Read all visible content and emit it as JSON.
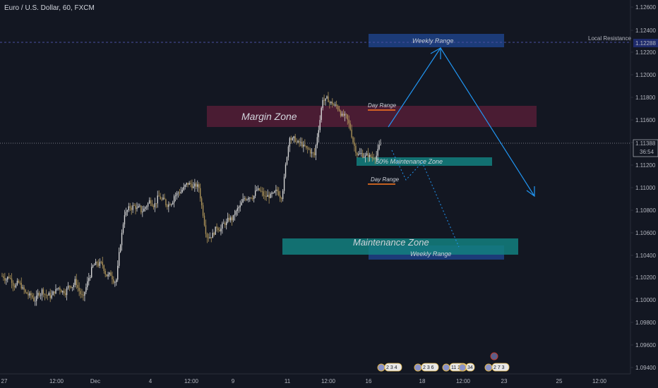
{
  "symbol_title": "Euro / U.S. Dollar, 60, FXCM",
  "price_axis": {
    "ticks": [
      "1.12600",
      "1.12400",
      "1.12200",
      "1.12000",
      "1.11800",
      "1.11600",
      "1.11400",
      "1.11200",
      "1.11000",
      "1.10800",
      "1.10600",
      "1.10400",
      "1.10200",
      "1.10000",
      "1.09800",
      "1.09600",
      "1.09400"
    ],
    "current_price": "1.11388",
    "countdown": "36:54",
    "resistance_price": "1.12288",
    "resistance_label": "Local Resistance"
  },
  "time_axis": {
    "ticks": [
      "27",
      "12:00",
      "Dec",
      "4",
      "12:00",
      "9",
      "11",
      "12:00",
      "16",
      "18",
      "12:00",
      "23",
      "25",
      "12:00"
    ]
  },
  "annotations": {
    "weekly_range_top": "Weekly Range",
    "weekly_range_bottom": "Weekly Range",
    "margin_zone": "Margin Zone",
    "maintenance_zone": "Maintenance Zone",
    "half_maintenance_zone": "50% Maintenance Zone",
    "day_range_top": "Day Range",
    "day_range_bottom": "Day Range"
  },
  "events": [
    {
      "icon": "event-flags",
      "label": "2 3 4"
    },
    {
      "icon": "event-flags",
      "label": "2 3 6"
    },
    {
      "icon": "event-flags",
      "label": "11 22"
    },
    {
      "icon": "event-flags",
      "label": "34"
    },
    {
      "icon": "event-flags",
      "label": "2 7 3"
    }
  ],
  "colors": {
    "background": "#131722",
    "candle_up": "#d9d9d9",
    "candle_down": "#b0965a",
    "margin_zone": "#5d1f3a",
    "maintenance_zone": "#13807f",
    "weekly_range": "#1c3b78",
    "arrow": "#2196f3",
    "day_range_line": "#ff7a1f"
  },
  "chart_data": {
    "type": "candlestick",
    "series_overview": {
      "approx_close": [
        1.1025,
        1.1018,
        1.101,
        1.1005,
        1.1012,
        1.1008,
        1.1015,
        1.1013,
        1.102,
        1.1005,
        1.103,
        1.1035,
        1.1025,
        1.1022,
        1.108,
        1.1085,
        1.1082,
        1.109,
        1.1092,
        1.1088,
        1.1095,
        1.11,
        1.1105,
        1.1102,
        1.106,
        1.1065,
        1.107,
        1.1075,
        1.1085,
        1.1095,
        1.11,
        1.1093,
        1.1095,
        1.1095,
        1.1148,
        1.114,
        1.1135,
        1.113,
        1.118,
        1.1175,
        1.117,
        1.116,
        1.1135,
        1.113,
        1.1128,
        1.1139
      ]
    },
    "ylim": [
      1.094,
      1.1265
    ],
    "current_price": 1.11388,
    "resistance": 1.12288
  }
}
